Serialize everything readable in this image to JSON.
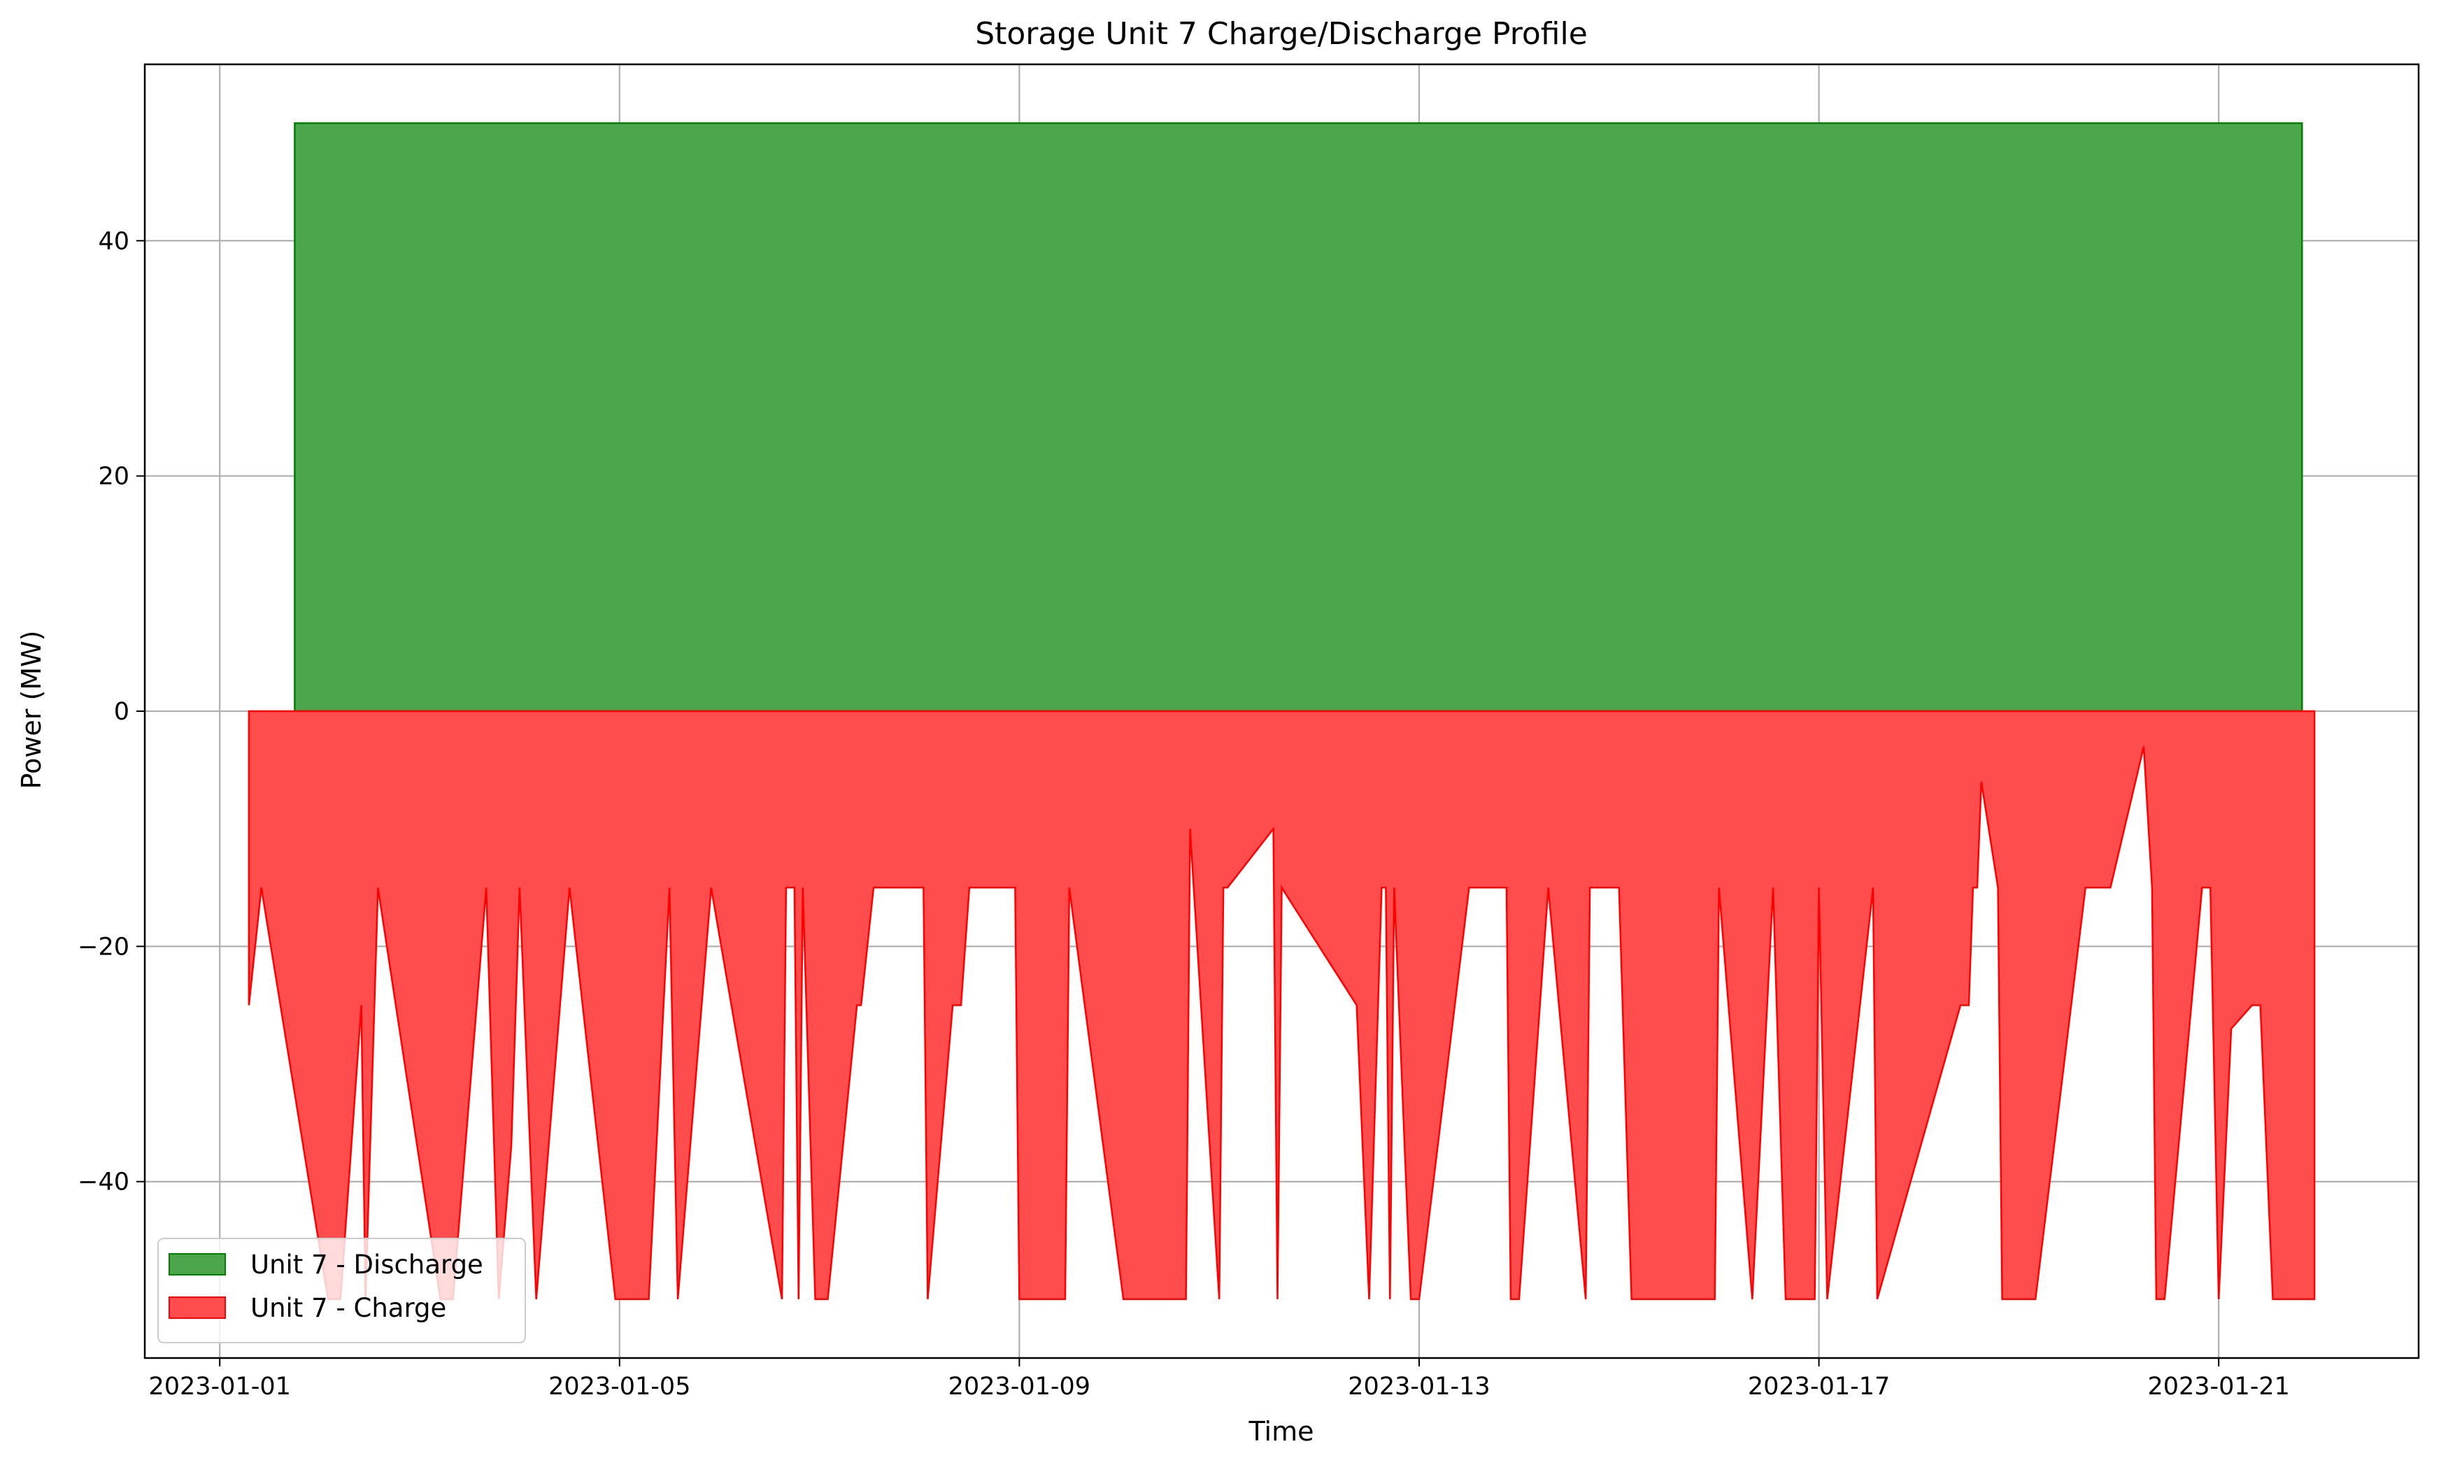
{
  "chart_data": {
    "type": "area",
    "title": "Storage Unit 7 Charge/Discharge Profile",
    "xlabel": "Time",
    "ylabel": "Power (MW)",
    "xlim": [
      "2023-01-00T06:00",
      "2023-01-23T00:00"
    ],
    "ylim": [
      -55,
      55
    ],
    "x_ticks": [
      "2023-01-01",
      "2023-01-05",
      "2023-01-09",
      "2023-01-13",
      "2023-01-17",
      "2023-01-21"
    ],
    "y_ticks": [
      -40,
      -20,
      0,
      20,
      40
    ],
    "grid": true,
    "legend_position": "lower-left",
    "colors": {
      "discharge": "#4ca64c",
      "charge": "#ff4c4c",
      "discharge_edge": "#008000",
      "charge_edge": "#ff0000"
    },
    "series": [
      {
        "name": "Unit 7 - Discharge",
        "color": "#4ca64c",
        "points": [
          [
            "2023-01-01T18:00",
            0
          ],
          [
            "2023-01-01T18:00",
            50
          ],
          [
            "2023-01-21T20:00",
            50
          ],
          [
            "2023-01-21T20:00",
            0
          ]
        ]
      },
      {
        "name": "Unit 7 - Charge",
        "color": "#ff4c4c",
        "points": [
          [
            "2023-01-01T07:00",
            0
          ],
          [
            "2023-01-01T07:00",
            -25
          ],
          [
            "2023-01-01T10:00",
            -15
          ],
          [
            "2023-01-02T02:00",
            -50
          ],
          [
            "2023-01-02T05:00",
            -50
          ],
          [
            "2023-01-02T10:00",
            -25
          ],
          [
            "2023-01-02T11:00",
            -50
          ],
          [
            "2023-01-02T14:00",
            -15
          ],
          [
            "2023-01-03T05:00",
            -50
          ],
          [
            "2023-01-03T08:00",
            -50
          ],
          [
            "2023-01-03T16:00",
            -15
          ],
          [
            "2023-01-03T19:00",
            -50
          ],
          [
            "2023-01-03T22:00",
            -37
          ],
          [
            "2023-01-04T00:00",
            -15
          ],
          [
            "2023-01-04T04:00",
            -50
          ],
          [
            "2023-01-04T12:00",
            -15
          ],
          [
            "2023-01-04T23:00",
            -50
          ],
          [
            "2023-01-05T07:00",
            -50
          ],
          [
            "2023-01-05T12:00",
            -15
          ],
          [
            "2023-01-05T14:00",
            -50
          ],
          [
            "2023-01-05T22:00",
            -15
          ],
          [
            "2023-01-06T15:00",
            -50
          ],
          [
            "2023-01-06T16:00",
            -15
          ],
          [
            "2023-01-06T18:00",
            -15
          ],
          [
            "2023-01-06T19:00",
            -50
          ],
          [
            "2023-01-06T20:00",
            -15
          ],
          [
            "2023-01-06T23:00",
            -50
          ],
          [
            "2023-01-07T02:00",
            -50
          ],
          [
            "2023-01-07T09:00",
            -25
          ],
          [
            "2023-01-07T10:00",
            -25
          ],
          [
            "2023-01-07T13:00",
            -15
          ],
          [
            "2023-01-08T01:00",
            -15
          ],
          [
            "2023-01-08T02:00",
            -50
          ],
          [
            "2023-01-08T08:00",
            -25
          ],
          [
            "2023-01-08T10:00",
            -25
          ],
          [
            "2023-01-08T12:00",
            -15
          ],
          [
            "2023-01-08T23:00",
            -15
          ],
          [
            "2023-01-09T00:00",
            -50
          ],
          [
            "2023-01-09T11:00",
            -50
          ],
          [
            "2023-01-09T12:00",
            -15
          ],
          [
            "2023-01-10T01:00",
            -50
          ],
          [
            "2023-01-10T16:00",
            -50
          ],
          [
            "2023-01-10T17:00",
            -10
          ],
          [
            "2023-01-11T00:00",
            -50
          ],
          [
            "2023-01-11T01:00",
            -15
          ],
          [
            "2023-01-11T02:00",
            -15
          ],
          [
            "2023-01-11T13:00",
            -10
          ],
          [
            "2023-01-11T14:00",
            -50
          ],
          [
            "2023-01-11T15:00",
            -15
          ],
          [
            "2023-01-12T09:00",
            -25
          ],
          [
            "2023-01-12T12:00",
            -50
          ],
          [
            "2023-01-12T15:00",
            -15
          ],
          [
            "2023-01-12T16:00",
            -15
          ],
          [
            "2023-01-12T17:00",
            -50
          ],
          [
            "2023-01-12T18:00",
            -15
          ],
          [
            "2023-01-12T22:00",
            -50
          ],
          [
            "2023-01-13T00:00",
            -50
          ],
          [
            "2023-01-13T12:00",
            -15
          ],
          [
            "2023-01-13T21:00",
            -15
          ],
          [
            "2023-01-13T22:00",
            -50
          ],
          [
            "2023-01-14T00:00",
            -50
          ],
          [
            "2023-01-14T07:00",
            -15
          ],
          [
            "2023-01-14T16:00",
            -50
          ],
          [
            "2023-01-14T17:00",
            -15
          ],
          [
            "2023-01-15T00:00",
            -15
          ],
          [
            "2023-01-15T03:00",
            -50
          ],
          [
            "2023-01-15T23:00",
            -50
          ],
          [
            "2023-01-16T00:00",
            -15
          ],
          [
            "2023-01-16T08:00",
            -50
          ],
          [
            "2023-01-16T13:00",
            -15
          ],
          [
            "2023-01-16T16:00",
            -50
          ],
          [
            "2023-01-16T23:00",
            -50
          ],
          [
            "2023-01-17T00:00",
            -15
          ],
          [
            "2023-01-17T02:00",
            -50
          ],
          [
            "2023-01-17T13:00",
            -15
          ],
          [
            "2023-01-17T14:00",
            -50
          ],
          [
            "2023-01-18T10:00",
            -25
          ],
          [
            "2023-01-18T12:00",
            -25
          ],
          [
            "2023-01-18T13:00",
            -15
          ],
          [
            "2023-01-18T14:00",
            -15
          ],
          [
            "2023-01-18T15:00",
            -6
          ],
          [
            "2023-01-18T19:00",
            -15
          ],
          [
            "2023-01-18T20:00",
            -50
          ],
          [
            "2023-01-19T04:00",
            -50
          ],
          [
            "2023-01-19T16:00",
            -15
          ],
          [
            "2023-01-19T22:00",
            -15
          ],
          [
            "2023-01-20T06:00",
            -3
          ],
          [
            "2023-01-20T08:00",
            -15
          ],
          [
            "2023-01-20T09:00",
            -50
          ],
          [
            "2023-01-20T11:00",
            -50
          ],
          [
            "2023-01-20T20:00",
            -15
          ],
          [
            "2023-01-20T22:00",
            -15
          ],
          [
            "2023-01-21T00:00",
            -50
          ],
          [
            "2023-01-21T03:00",
            -27
          ],
          [
            "2023-01-21T08:00",
            -25
          ],
          [
            "2023-01-21T10:00",
            -25
          ],
          [
            "2023-01-21T13:00",
            -50
          ],
          [
            "2023-01-21T23:00",
            -50
          ],
          [
            "2023-01-21T23:00",
            0
          ]
        ]
      }
    ]
  }
}
